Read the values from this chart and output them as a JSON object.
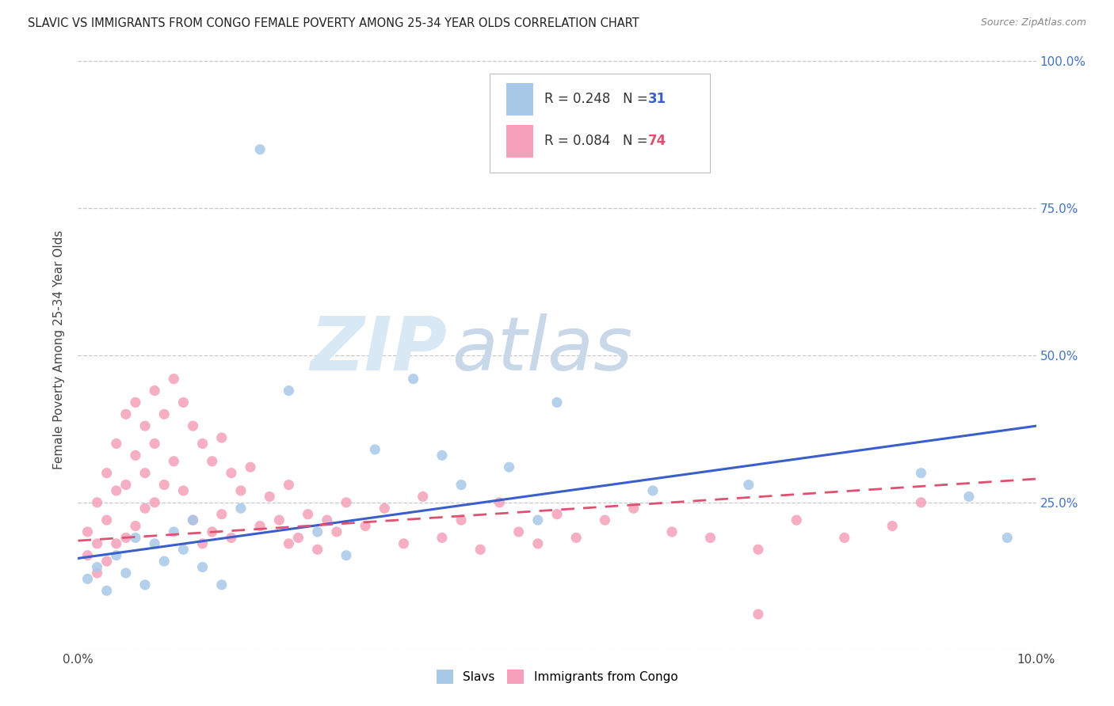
{
  "title": "SLAVIC VS IMMIGRANTS FROM CONGO FEMALE POVERTY AMONG 25-34 YEAR OLDS CORRELATION CHART",
  "source": "Source: ZipAtlas.com",
  "ylabel": "Female Poverty Among 25-34 Year Olds",
  "xlim": [
    0.0,
    0.1
  ],
  "ylim": [
    0.0,
    1.0
  ],
  "slavs_color": "#a8c8e8",
  "congo_color": "#f4a0b8",
  "slavs_line_color": "#3a5fcd",
  "congo_line_color": "#e05070",
  "slavs_R": 0.248,
  "slavs_N": 31,
  "congo_R": 0.084,
  "congo_N": 74,
  "watermark_zip": "ZIP",
  "watermark_atlas": "atlas",
  "watermark_color": "#d0dff0",
  "slavs_x": [
    0.001,
    0.002,
    0.003,
    0.004,
    0.005,
    0.006,
    0.007,
    0.008,
    0.009,
    0.01,
    0.011,
    0.012,
    0.013,
    0.015,
    0.017,
    0.019,
    0.022,
    0.025,
    0.028,
    0.031,
    0.035,
    0.038,
    0.04,
    0.045,
    0.048,
    0.05,
    0.06,
    0.07,
    0.088,
    0.093,
    0.097
  ],
  "slavs_y": [
    0.12,
    0.14,
    0.1,
    0.16,
    0.13,
    0.19,
    0.11,
    0.18,
    0.15,
    0.2,
    0.17,
    0.22,
    0.14,
    0.11,
    0.24,
    0.85,
    0.44,
    0.2,
    0.16,
    0.34,
    0.46,
    0.33,
    0.28,
    0.31,
    0.22,
    0.42,
    0.27,
    0.28,
    0.3,
    0.26,
    0.19
  ],
  "congo_x": [
    0.001,
    0.001,
    0.002,
    0.002,
    0.002,
    0.003,
    0.003,
    0.003,
    0.004,
    0.004,
    0.004,
    0.005,
    0.005,
    0.005,
    0.006,
    0.006,
    0.006,
    0.007,
    0.007,
    0.007,
    0.008,
    0.008,
    0.008,
    0.009,
    0.009,
    0.01,
    0.01,
    0.011,
    0.011,
    0.012,
    0.012,
    0.013,
    0.013,
    0.014,
    0.014,
    0.015,
    0.015,
    0.016,
    0.016,
    0.017,
    0.018,
    0.019,
    0.02,
    0.021,
    0.022,
    0.022,
    0.023,
    0.024,
    0.025,
    0.026,
    0.027,
    0.028,
    0.03,
    0.032,
    0.034,
    0.036,
    0.038,
    0.04,
    0.042,
    0.044,
    0.046,
    0.048,
    0.05,
    0.052,
    0.055,
    0.058,
    0.062,
    0.066,
    0.071,
    0.075,
    0.08,
    0.085,
    0.088,
    0.071
  ],
  "congo_y": [
    0.2,
    0.16,
    0.25,
    0.18,
    0.13,
    0.3,
    0.22,
    0.15,
    0.35,
    0.27,
    0.18,
    0.4,
    0.28,
    0.19,
    0.42,
    0.33,
    0.21,
    0.38,
    0.3,
    0.24,
    0.44,
    0.35,
    0.25,
    0.4,
    0.28,
    0.46,
    0.32,
    0.42,
    0.27,
    0.38,
    0.22,
    0.35,
    0.18,
    0.32,
    0.2,
    0.36,
    0.23,
    0.3,
    0.19,
    0.27,
    0.31,
    0.21,
    0.26,
    0.22,
    0.18,
    0.28,
    0.19,
    0.23,
    0.17,
    0.22,
    0.2,
    0.25,
    0.21,
    0.24,
    0.18,
    0.26,
    0.19,
    0.22,
    0.17,
    0.25,
    0.2,
    0.18,
    0.23,
    0.19,
    0.22,
    0.24,
    0.2,
    0.19,
    0.17,
    0.22,
    0.19,
    0.21,
    0.25,
    0.06
  ]
}
